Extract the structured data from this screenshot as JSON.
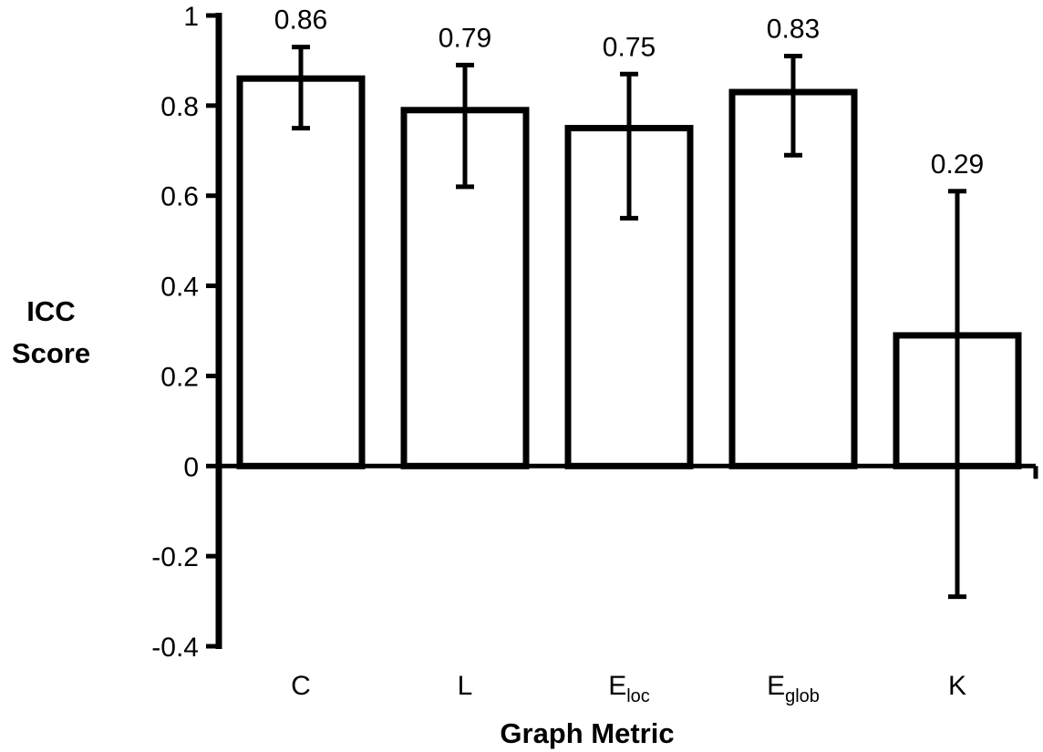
{
  "chart_data": {
    "type": "bar",
    "title": "",
    "xlabel": "Graph Metric",
    "ylabel_lines": [
      "ICC",
      "Score"
    ],
    "ylim": [
      -0.4,
      1
    ],
    "yticks": [
      "1",
      "0.8",
      "0.6",
      "0.4",
      "0.2",
      "0",
      "-0.2",
      "-0.4"
    ],
    "ytick_values": [
      1,
      0.8,
      0.6,
      0.4,
      0.2,
      0,
      -0.2,
      -0.4
    ],
    "categories": [
      {
        "base": "C",
        "sub": ""
      },
      {
        "base": "L",
        "sub": ""
      },
      {
        "base": "E",
        "sub": "loc"
      },
      {
        "base": "E",
        "sub": "glob"
      },
      {
        "base": "K",
        "sub": ""
      }
    ],
    "values": [
      0.86,
      0.79,
      0.75,
      0.83,
      0.29
    ],
    "value_labels": [
      "0.86",
      "0.79",
      "0.75",
      "0.83",
      "0.29"
    ],
    "error_low": [
      0.75,
      0.62,
      0.55,
      0.69,
      -0.29
    ],
    "error_high": [
      0.93,
      0.89,
      0.87,
      0.91,
      0.61
    ],
    "grid": false,
    "legend": "none",
    "bar_fill": "#ffffff",
    "stroke_color": "#000000"
  }
}
